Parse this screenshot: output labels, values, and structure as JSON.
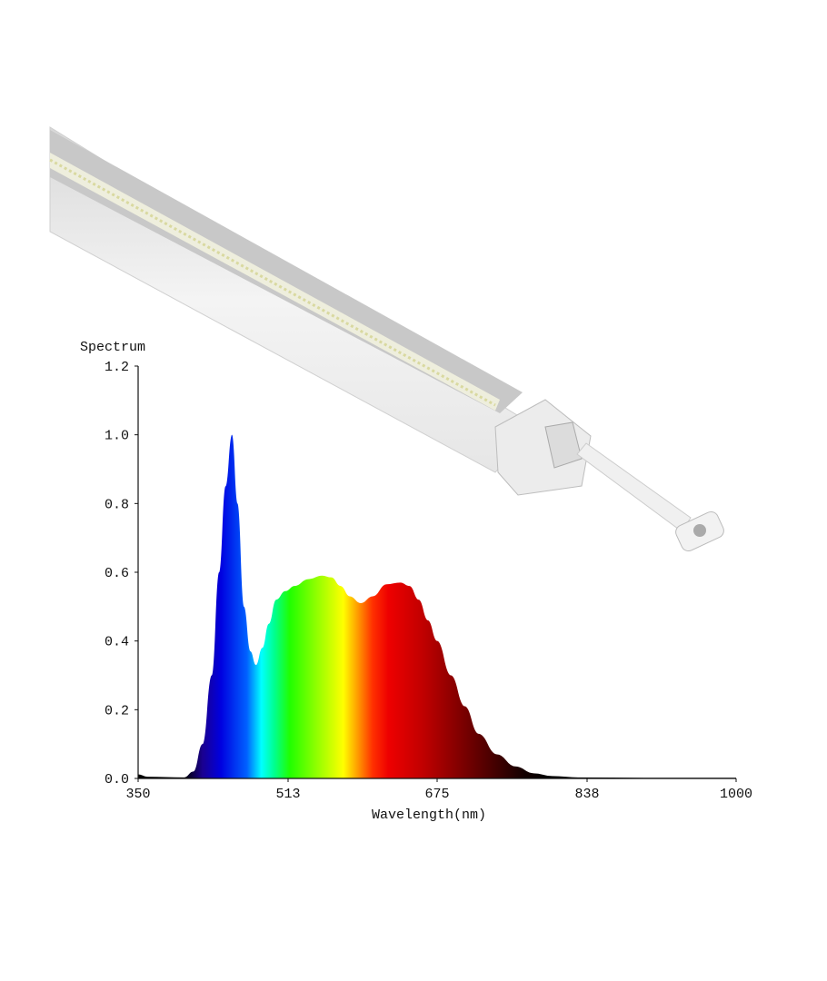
{
  "chart_data": {
    "type": "area",
    "title": "",
    "ylabel": "Spectrum",
    "xlabel": "Wavelength(nm)",
    "xlim": [
      350,
      1000
    ],
    "ylim": [
      0,
      1.2
    ],
    "x_ticks": [
      "350",
      "513",
      "675",
      "838",
      "1000"
    ],
    "y_ticks": [
      "0.0",
      "0.2",
      "0.4",
      "0.6",
      "0.8",
      "1.0",
      "1.2"
    ],
    "grid": false,
    "fill": "visible-spectrum gradient",
    "series": [
      {
        "x": [
          350,
          360,
          400,
          410,
          420,
          430,
          438,
          445,
          452,
          458,
          465,
          472,
          478,
          485,
          492,
          500,
          510,
          520,
          535,
          550,
          560,
          570,
          580,
          592,
          605,
          620,
          635,
          645,
          655,
          665,
          675,
          690,
          705,
          720,
          740,
          760,
          780,
          800,
          830,
          900,
          1000
        ],
        "y": [
          0.012,
          0.005,
          0.003,
          0.02,
          0.1,
          0.3,
          0.6,
          0.85,
          1.0,
          0.8,
          0.5,
          0.37,
          0.33,
          0.38,
          0.45,
          0.52,
          0.545,
          0.56,
          0.58,
          0.59,
          0.585,
          0.56,
          0.53,
          0.51,
          0.53,
          0.565,
          0.57,
          0.56,
          0.52,
          0.46,
          0.4,
          0.3,
          0.21,
          0.13,
          0.07,
          0.035,
          0.015,
          0.007,
          0.003,
          0.002,
          0.002
        ]
      }
    ]
  },
  "product_image": {
    "icon": "led-tube-light-fixture"
  },
  "colors": {
    "axis": "#111111",
    "peak_blue": "#0000e0",
    "green": "#20ff00",
    "red": "#e00000"
  }
}
